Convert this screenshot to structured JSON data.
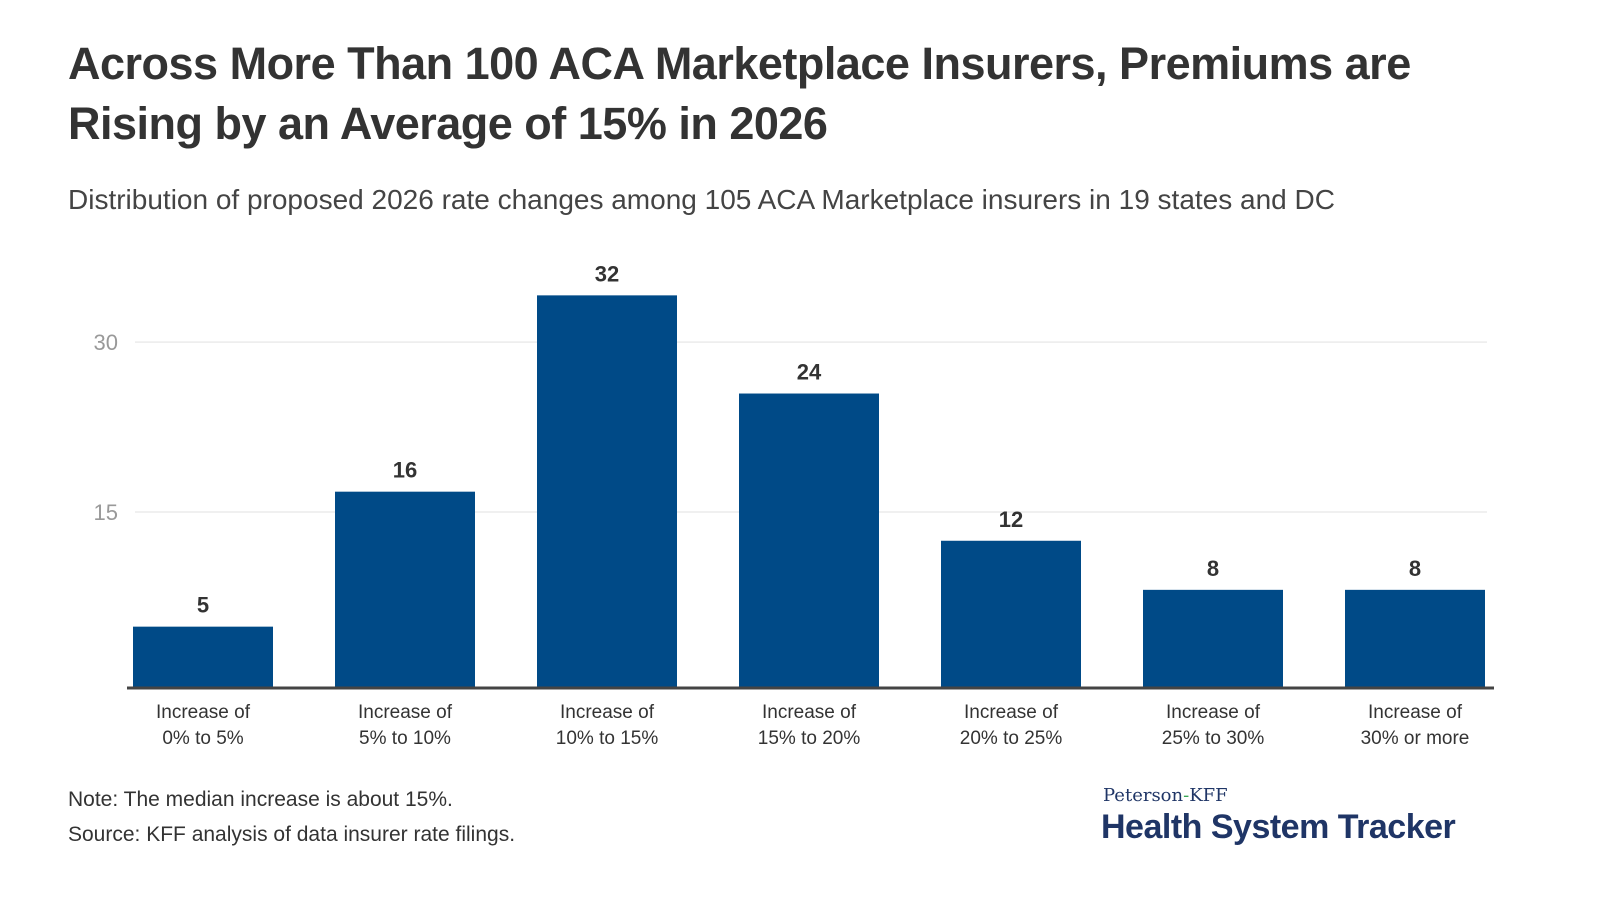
{
  "chart_data": {
    "type": "bar",
    "title": "Across More Than 100 ACA Marketplace Insurers, Premiums are Rising by an Average of 15% in 2026",
    "subtitle": "Distribution of proposed 2026 rate changes among 105 ACA Marketplace insurers in 19 states and DC",
    "categories": [
      [
        "Increase of",
        "0% to 5%"
      ],
      [
        "Increase of",
        "5% to 10%"
      ],
      [
        "Increase of",
        "10% to 15%"
      ],
      [
        "Increase of",
        "15% to 20%"
      ],
      [
        "Increase of",
        "20% to 25%"
      ],
      [
        "Increase of",
        "25% to 30%"
      ],
      [
        "Increase of",
        "30% or more"
      ]
    ],
    "values": [
      5,
      16,
      32,
      24,
      12,
      8,
      8
    ],
    "yticks": [
      15,
      30
    ],
    "ylim": [
      0,
      34
    ],
    "grid": true,
    "bar_color": "#004a87",
    "xlabel": "",
    "ylabel": ""
  },
  "footer": {
    "note": "Note: The median increase is about 15%.",
    "source": "Source: KFF analysis of data insurer rate filings."
  },
  "logo": {
    "top_left": "Peterson",
    "top_dash": "-",
    "top_right": "KFF",
    "main": "Health System Tracker"
  }
}
